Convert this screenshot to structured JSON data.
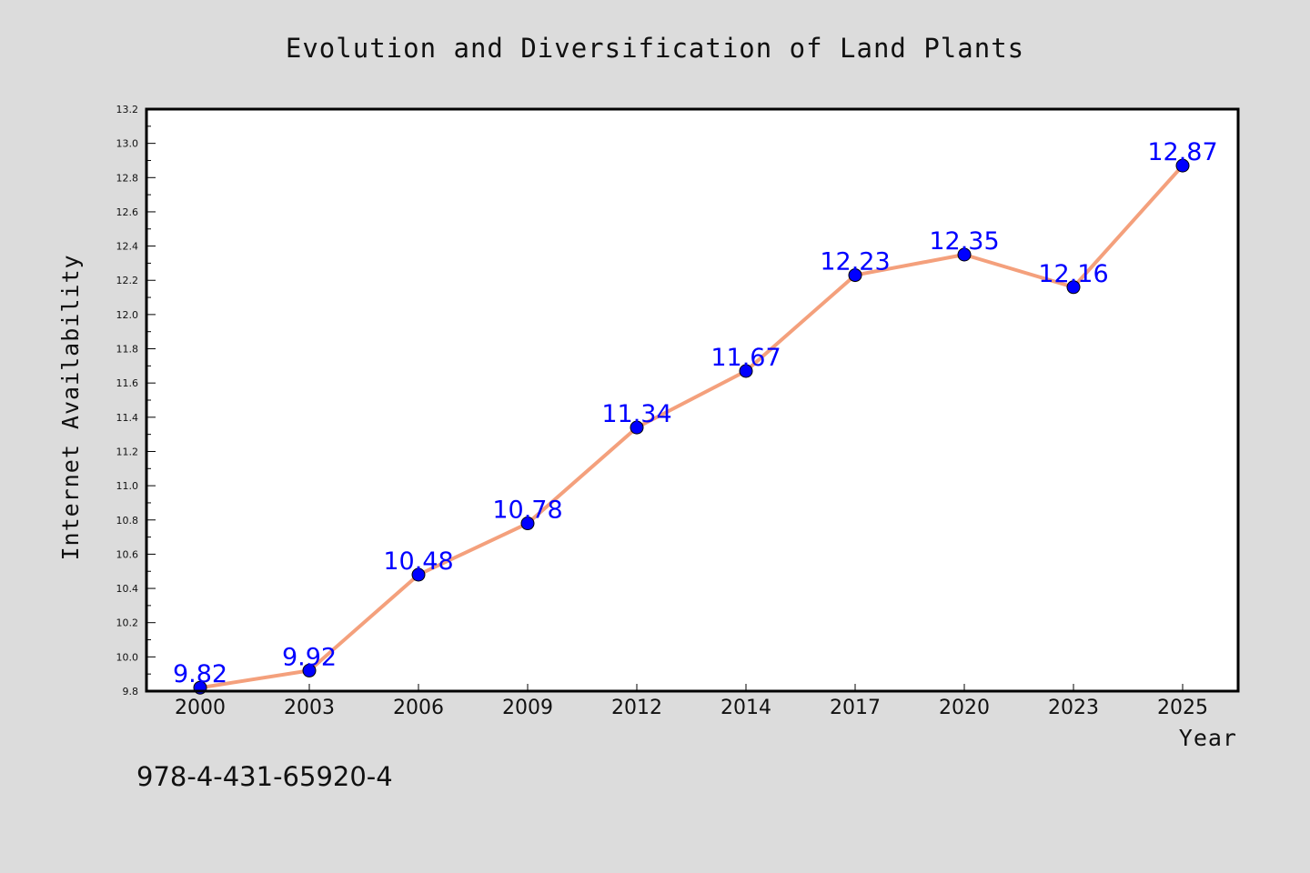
{
  "chart_data": {
    "type": "line",
    "title": "Evolution and Diversification of Land Plants",
    "xlabel": "Year",
    "ylabel": "Internet Availability",
    "categories": [
      "2000",
      "2003",
      "2006",
      "2009",
      "2012",
      "2014",
      "2017",
      "2020",
      "2023",
      "2025"
    ],
    "series": [
      {
        "values": [
          9.82,
          9.92,
          10.48,
          10.78,
          11.34,
          11.67,
          12.23,
          12.35,
          12.16,
          12.87
        ],
        "labels": [
          "9.82",
          "9.92",
          "10.48",
          "10.78",
          "11.34",
          "11.67",
          "12.23",
          "12.35",
          "12.16",
          "12.87"
        ],
        "line_color": "#f4a07c",
        "marker_color": "#0000ff"
      }
    ],
    "ylim": [
      9.8,
      13.2
    ],
    "y_ticks": [
      "9.8",
      "10.0",
      "10.2",
      "10.4",
      "10.6",
      "10.8",
      "11.0",
      "11.2",
      "11.4",
      "11.6",
      "11.8",
      "12.0",
      "12.2",
      "12.4",
      "12.6",
      "12.8",
      "13.0",
      "13.2"
    ],
    "grid": false,
    "legend": "none"
  },
  "annotation": {
    "isbn": "978-4-431-65920-4"
  },
  "colors": {
    "background": "#dcdcdc",
    "plot_background": "#ffffff",
    "label_color": "#0000ff"
  }
}
